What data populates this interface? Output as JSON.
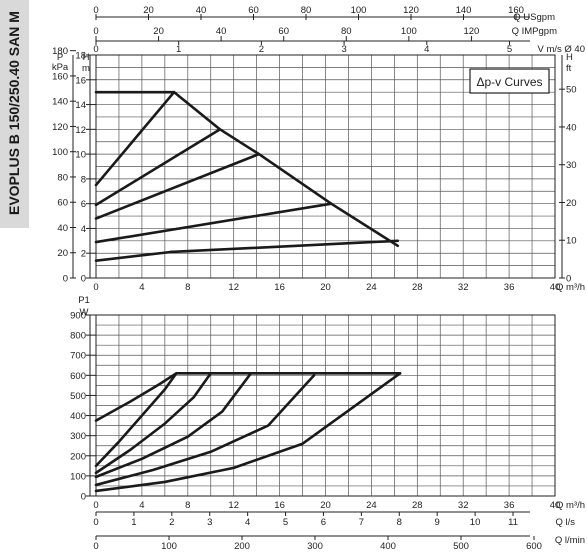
{
  "title": "EVOPLUS B 150/250.40 SAN M",
  "chart_data": [
    {
      "type": "line",
      "legend": "Δp-v Curves",
      "x_axis": {
        "label": "Q m³/h",
        "ticks": [
          "0",
          "4",
          "8",
          "12",
          "16",
          "20",
          "24",
          "28",
          "32",
          "36",
          "40"
        ],
        "range": [
          0,
          40
        ]
      },
      "top_axes": [
        {
          "label": "Q USgpm",
          "ticks": [
            "0",
            "20",
            "40",
            "60",
            "80",
            "100",
            "120",
            "140",
            "160"
          ]
        },
        {
          "label": "Q IMPgpm",
          "ticks": [
            "0",
            "20",
            "40",
            "60",
            "80",
            "100",
            "120"
          ]
        },
        {
          "label": "V m/s Ø 40",
          "ticks": [
            "0",
            "1",
            "2",
            "3",
            "4",
            "5"
          ]
        }
      ],
      "y_axis_H_m": {
        "label": "H m",
        "ticks": [
          "0",
          "2",
          "4",
          "6",
          "8",
          "10",
          "12",
          "14",
          "16",
          "18"
        ],
        "range": [
          0,
          18
        ]
      },
      "y_axis_P_kPa": {
        "label": "P kPa",
        "ticks": [
          "0",
          "20",
          "40",
          "60",
          "80",
          "100",
          "120",
          "140",
          "160",
          "180"
        ]
      },
      "y_axis_H_ft": {
        "label": "H ft",
        "ticks": [
          "0",
          "10",
          "20",
          "30",
          "40",
          "50"
        ]
      },
      "series": [
        {
          "x": [
            0,
            6.5
          ],
          "y": [
            1.4,
            2.1
          ]
        },
        {
          "x": [
            6.5,
            26.3
          ],
          "y": [
            2.1,
            3.0
          ]
        },
        {
          "x": [
            0,
            20.5
          ],
          "y": [
            2.9,
            6.0
          ]
        },
        {
          "x": [
            0,
            14.2
          ],
          "y": [
            4.8,
            10.0
          ]
        },
        {
          "x": [
            0,
            10.8
          ],
          "y": [
            5.9,
            12.0
          ]
        },
        {
          "x": [
            0,
            6.8
          ],
          "y": [
            7.5,
            15.0
          ]
        },
        {
          "x": [
            0,
            6.2
          ],
          "y": [
            15.0,
            15.0
          ]
        },
        {
          "x": [
            6.2,
            6.8,
            10.8,
            14.2,
            20.5,
            26.3
          ],
          "y": [
            15.0,
            15.0,
            12.0,
            10.0,
            6.0,
            2.6
          ]
        }
      ]
    },
    {
      "type": "line",
      "x_axis": {
        "label": "Q m³/h",
        "ticks": [
          "0",
          "4",
          "8",
          "12",
          "16",
          "20",
          "24",
          "28",
          "32",
          "36",
          "40"
        ],
        "range": [
          0,
          40
        ]
      },
      "bottom_axes": [
        {
          "label": "Q l/s",
          "ticks": [
            "0",
            "1",
            "2",
            "3",
            "4",
            "5",
            "6",
            "7",
            "8",
            "9",
            "10",
            "11"
          ]
        },
        {
          "label": "Q l/min",
          "ticks": [
            "0",
            "100",
            "200",
            "300",
            "400",
            "500",
            "600"
          ]
        }
      ],
      "y_axis": {
        "label": "P1 W",
        "ticks": [
          "0",
          "100",
          "200",
          "300",
          "400",
          "500",
          "600",
          "700",
          "800",
          "900"
        ],
        "range": [
          0,
          900
        ]
      },
      "series": [
        {
          "x": [
            0,
            3,
            5.5,
            7,
            26.5
          ],
          "y": [
            375,
            470,
            555,
            610,
            610
          ]
        },
        {
          "x": [
            0,
            2,
            4,
            6,
            7
          ],
          "y": [
            150,
            270,
            400,
            530,
            610
          ]
        },
        {
          "x": [
            0,
            3,
            6,
            8.5,
            10
          ],
          "y": [
            115,
            230,
            360,
            490,
            610
          ]
        },
        {
          "x": [
            0,
            4,
            8,
            11,
            13.5
          ],
          "y": [
            95,
            185,
            295,
            420,
            610
          ]
        },
        {
          "x": [
            0,
            5,
            10,
            15,
            19
          ],
          "y": [
            55,
            130,
            220,
            350,
            600
          ]
        },
        {
          "x": [
            0,
            6,
            12,
            18,
            26.5
          ],
          "y": [
            25,
            70,
            140,
            260,
            610
          ]
        }
      ]
    }
  ]
}
